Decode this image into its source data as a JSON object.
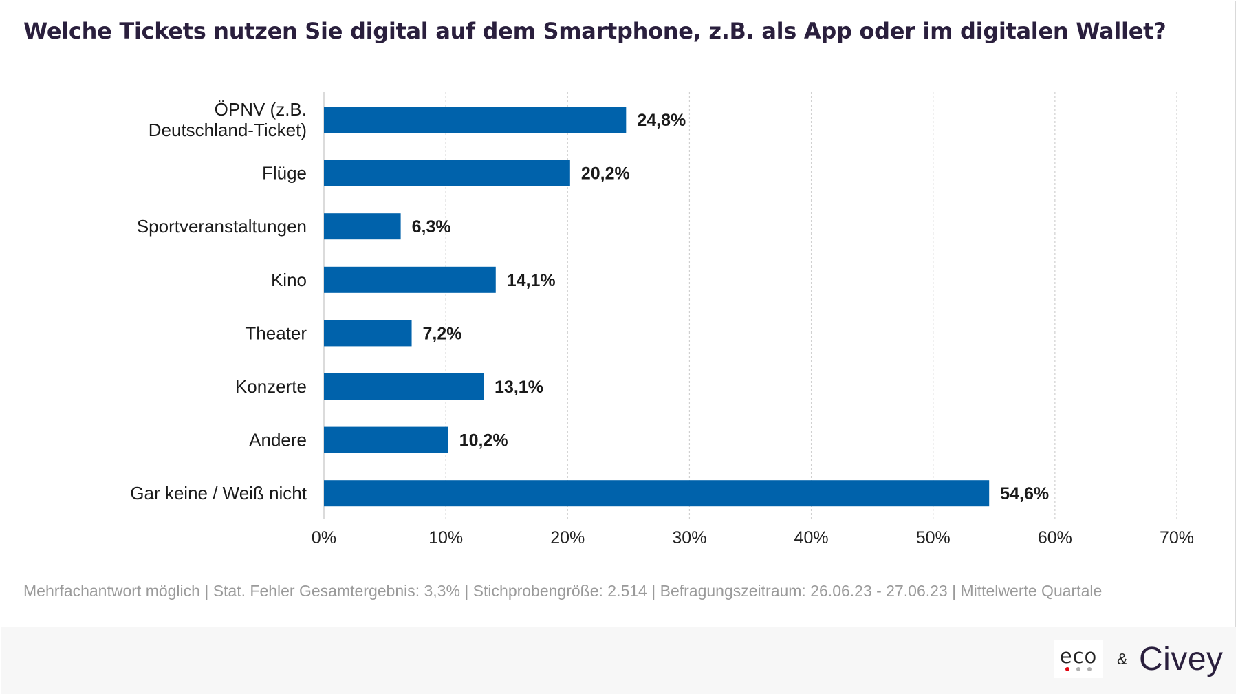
{
  "title": "Welche Tickets nutzen Sie digital auf dem Smartphone, z.B. als App oder im digitalen Wallet?",
  "footnote": "Mehrfachantwort möglich | Stat. Fehler Gesamtergebnis: 3,3% | Stichprobengröße: 2.514 | Befragungszeitraum: 26.06.23 - 27.06.23 | Mittelwerte Quartale",
  "branding": {
    "eco": "eco",
    "ampersand": "&",
    "civey": "Civey"
  },
  "colors": {
    "bar": "#0062ab",
    "title": "#2a1f3d",
    "grid": "#d0d0d0",
    "footnote": "#9a9a9a",
    "eco_dot_red": "#e30613",
    "eco_dot_gray": "#b0b0b0"
  },
  "chart_data": {
    "type": "bar",
    "orientation": "horizontal",
    "categories": [
      [
        "ÖPNV (z.B.",
        "Deutschland-Ticket)"
      ],
      [
        "Flüge"
      ],
      [
        "Sportveranstaltungen"
      ],
      [
        "Kino"
      ],
      [
        "Theater"
      ],
      [
        "Konzerte"
      ],
      [
        "Andere"
      ],
      [
        "Gar keine / Weiß nicht"
      ]
    ],
    "values": [
      24.8,
      20.2,
      6.3,
      14.1,
      7.2,
      13.1,
      10.2,
      54.6
    ],
    "value_labels": [
      "24,8%",
      "20,2%",
      "6,3%",
      "14,1%",
      "7,2%",
      "13,1%",
      "10,2%",
      "54,6%"
    ],
    "xlim": [
      0,
      70
    ],
    "xticks": [
      0,
      10,
      20,
      30,
      40,
      50,
      60,
      70
    ],
    "xtick_labels": [
      "0%",
      "10%",
      "20%",
      "30%",
      "40%",
      "50%",
      "60%",
      "70%"
    ],
    "grid": "vertical dashed"
  }
}
